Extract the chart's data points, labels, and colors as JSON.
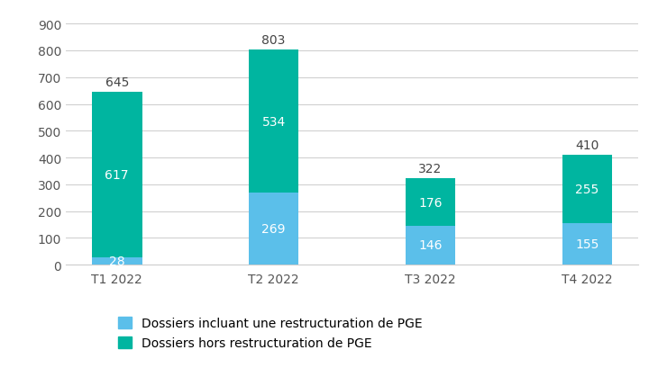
{
  "categories": [
    "T1 2022",
    "T2 2022",
    "T3 2022",
    "T4 2022"
  ],
  "blue_values": [
    28,
    269,
    146,
    155
  ],
  "teal_values": [
    617,
    534,
    176,
    255
  ],
  "totals": [
    645,
    803,
    322,
    410
  ],
  "blue_color": "#5BBFEA",
  "teal_color": "#00B5A0",
  "background_color": "#FFFFFF",
  "grid_color": "#CCCCCC",
  "ylim": [
    0,
    950
  ],
  "yticks": [
    0,
    100,
    200,
    300,
    400,
    500,
    600,
    700,
    800,
    900
  ],
  "legend_blue": "Dossiers incluant une restructuration de PGE",
  "legend_teal": "Dossiers hors restructuration de PGE",
  "tick_fontsize": 10,
  "annotation_fontsize": 10,
  "total_fontsize": 10,
  "legend_fontsize": 10,
  "bar_width": 0.32
}
